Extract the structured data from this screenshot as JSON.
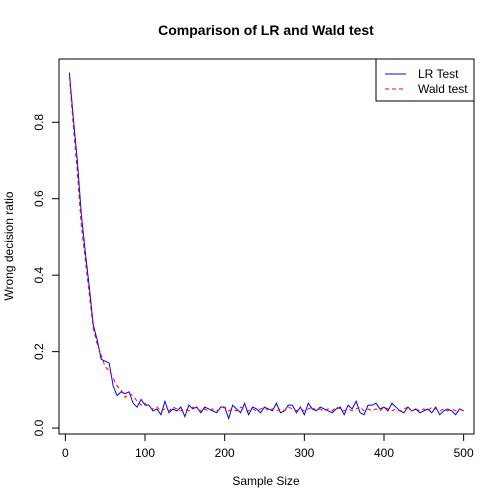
{
  "chart_data": {
    "type": "line",
    "title": "Comparison of LR and Wald test",
    "xlabel": "Sample Size",
    "ylabel": "Wrong decision ratio",
    "xlim": [
      -8,
      513
    ],
    "ylim": [
      -0.0155,
      0.9655
    ],
    "xticks": [
      0,
      100,
      200,
      300,
      400,
      500
    ],
    "yticks": [
      0.0,
      0.2,
      0.4,
      0.6,
      0.8
    ],
    "xtick_labels": [
      "0",
      "100",
      "200",
      "300",
      "400",
      "500"
    ],
    "ytick_labels": [
      "0.0",
      "0.2",
      "0.4",
      "0.6",
      "0.8"
    ],
    "legend_position": "top-right",
    "x": [
      5,
      10,
      15,
      20,
      25,
      30,
      35,
      40,
      45,
      50,
      55,
      60,
      65,
      70,
      75,
      80,
      85,
      90,
      95,
      100,
      105,
      110,
      115,
      120,
      125,
      130,
      135,
      140,
      145,
      150,
      155,
      160,
      165,
      170,
      175,
      180,
      185,
      190,
      195,
      200,
      205,
      210,
      215,
      220,
      225,
      230,
      235,
      240,
      245,
      250,
      255,
      260,
      265,
      270,
      275,
      280,
      285,
      290,
      295,
      300,
      305,
      310,
      315,
      320,
      325,
      330,
      335,
      340,
      345,
      350,
      355,
      360,
      365,
      370,
      375,
      380,
      385,
      390,
      395,
      400,
      405,
      410,
      415,
      420,
      425,
      430,
      435,
      440,
      445,
      450,
      455,
      460,
      465,
      470,
      475,
      480,
      485,
      490,
      495,
      500
    ],
    "series": [
      {
        "name": "LR Test",
        "color": "#0000ff",
        "dash": "solid",
        "values": [
          0.93,
          0.81,
          0.7,
          0.56,
          0.46,
          0.37,
          0.27,
          0.23,
          0.18,
          0.175,
          0.17,
          0.11,
          0.085,
          0.095,
          0.09,
          0.095,
          0.065,
          0.055,
          0.075,
          0.06,
          0.06,
          0.045,
          0.05,
          0.035,
          0.07,
          0.04,
          0.05,
          0.045,
          0.055,
          0.03,
          0.06,
          0.05,
          0.055,
          0.04,
          0.055,
          0.05,
          0.045,
          0.04,
          0.055,
          0.055,
          0.025,
          0.06,
          0.05,
          0.04,
          0.065,
          0.035,
          0.055,
          0.05,
          0.04,
          0.055,
          0.05,
          0.045,
          0.065,
          0.04,
          0.045,
          0.06,
          0.06,
          0.04,
          0.055,
          0.035,
          0.065,
          0.05,
          0.045,
          0.055,
          0.05,
          0.045,
          0.04,
          0.05,
          0.055,
          0.035,
          0.06,
          0.05,
          0.07,
          0.04,
          0.035,
          0.06,
          0.06,
          0.065,
          0.05,
          0.055,
          0.045,
          0.065,
          0.055,
          0.045,
          0.04,
          0.055,
          0.045,
          0.05,
          0.04,
          0.045,
          0.05,
          0.04,
          0.055,
          0.035,
          0.045,
          0.05,
          0.045,
          0.035,
          0.05,
          0.045
        ]
      },
      {
        "name": "Wald test",
        "color": "#ff0000",
        "dash": "dashed",
        "values": [
          0.92,
          0.79,
          0.67,
          0.53,
          0.44,
          0.35,
          0.26,
          0.22,
          0.19,
          0.16,
          0.15,
          0.13,
          0.11,
          0.1,
          0.08,
          0.09,
          0.085,
          0.07,
          0.06,
          0.065,
          0.055,
          0.05,
          0.055,
          0.045,
          0.05,
          0.045,
          0.055,
          0.05,
          0.045,
          0.05,
          0.045,
          0.055,
          0.05,
          0.045,
          0.05,
          0.045,
          0.05,
          0.045,
          0.05,
          0.055,
          0.045,
          0.05,
          0.045,
          0.055,
          0.05,
          0.045,
          0.05,
          0.045,
          0.05,
          0.055,
          0.045,
          0.05,
          0.045,
          0.05,
          0.045,
          0.055,
          0.05,
          0.045,
          0.05,
          0.045,
          0.05,
          0.055,
          0.045,
          0.05,
          0.045,
          0.05,
          0.045,
          0.055,
          0.05,
          0.045,
          0.05,
          0.045,
          0.05,
          0.055,
          0.045,
          0.05,
          0.045,
          0.05,
          0.045,
          0.055,
          0.05,
          0.045,
          0.05,
          0.045,
          0.05,
          0.055,
          0.045,
          0.05,
          0.045,
          0.05,
          0.045,
          0.055,
          0.05,
          0.045,
          0.05,
          0.045,
          0.05,
          0.045,
          0.05,
          0.045
        ]
      }
    ]
  }
}
